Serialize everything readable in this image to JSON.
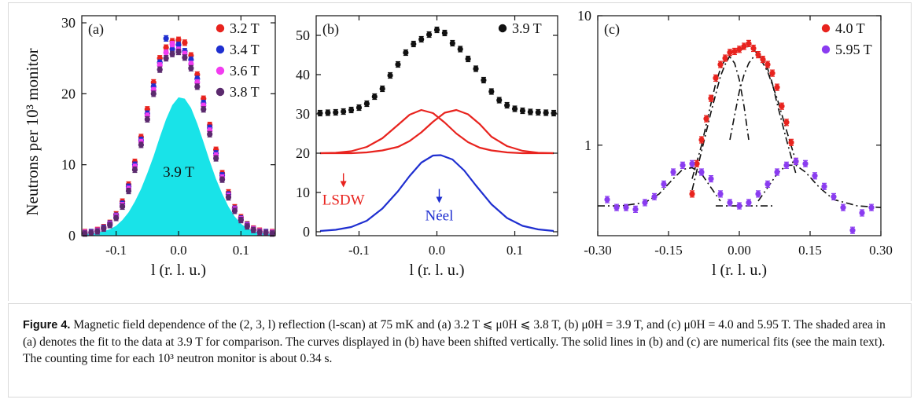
{
  "caption": {
    "label": "Figure 4.",
    "text": "Magnetic field dependence of the (2, 3, l) reflection (l-scan) at 75 mK and (a) 3.2 T ⩽ μ0H ⩽ 3.8 T, (b) μ0H = 3.9 T, and (c) μ0H = 4.0 and 5.95 T. The shaded area in (a) denotes the fit to the data at 3.9 T for comparison. The curves displayed in (b) have been shifted vertically. The solid lines in (b) and (c) are numerical fits (see the main text). The counting time for each 10³ neutron monitor is about 0.34 s."
  },
  "colors": {
    "red": "#e8231e",
    "blue": "#1f2fd0",
    "magenta": "#f23cf0",
    "purple": "#5b2a6e",
    "violet": "#8a3cf0",
    "cyan": "#19e3e8",
    "black": "#111111",
    "fit_red": "#e8231e",
    "fit_blue": "#1f2fd0"
  },
  "chart_data": [
    {
      "type": "scatter",
      "panel_label": "(a)",
      "ylabel": "Neutrons per 10³ monitor",
      "xlabel": "l (r. l. u.)",
      "xlim": [
        -0.155,
        0.155
      ],
      "ylim": [
        0,
        31
      ],
      "xticks": [
        -0.1,
        0.0,
        0.1
      ],
      "xtick_labels": [
        "-0.1",
        "0.0",
        "0.1"
      ],
      "yticks": [
        0,
        10,
        20,
        30
      ],
      "ytick_labels": [
        "0",
        "10",
        "20",
        "30"
      ],
      "legend": {
        "position": "top-right",
        "entries": [
          "3.2 T",
          "3.4 T",
          "3.6 T",
          "3.8 T"
        ]
      },
      "shaded_fit": {
        "label": "3.9 T",
        "color": "cyan",
        "x": [
          -0.15,
          -0.13,
          -0.11,
          -0.1,
          -0.09,
          -0.08,
          -0.07,
          -0.06,
          -0.05,
          -0.04,
          -0.03,
          -0.02,
          -0.01,
          0.0,
          0.01,
          0.02,
          0.03,
          0.04,
          0.05,
          0.06,
          0.07,
          0.08,
          0.09,
          0.1,
          0.11,
          0.13,
          0.15
        ],
        "y": [
          0.2,
          0.4,
          0.9,
          1.4,
          2.2,
          3.3,
          4.8,
          6.6,
          8.8,
          11.2,
          13.9,
          16.4,
          18.4,
          19.5,
          19.3,
          18.0,
          15.8,
          13.2,
          10.5,
          8.0,
          5.9,
          4.1,
          2.7,
          1.7,
          1.0,
          0.4,
          0.2
        ]
      },
      "series": [
        {
          "name": "3.2 T",
          "color": "red",
          "x": [
            -0.15,
            -0.14,
            -0.13,
            -0.12,
            -0.11,
            -0.1,
            -0.09,
            -0.08,
            -0.07,
            -0.06,
            -0.05,
            -0.04,
            -0.03,
            -0.02,
            -0.01,
            0.0,
            0.01,
            0.02,
            0.03,
            0.04,
            0.05,
            0.06,
            0.07,
            0.08,
            0.09,
            0.1,
            0.11,
            0.12,
            0.13,
            0.14,
            0.15
          ],
          "y": [
            0.5,
            0.5,
            0.8,
            1.2,
            1.8,
            3.0,
            4.8,
            7.2,
            10.4,
            13.9,
            17.8,
            21.6,
            25.0,
            26.5,
            27.4,
            27.6,
            27.2,
            25.4,
            22.7,
            19.3,
            15.6,
            12.1,
            8.8,
            6.1,
            4.0,
            2.6,
            1.6,
            1.0,
            0.7,
            0.5,
            0.5
          ]
        },
        {
          "name": "3.4 T",
          "color": "blue",
          "x": [
            -0.15,
            -0.14,
            -0.13,
            -0.12,
            -0.11,
            -0.1,
            -0.09,
            -0.08,
            -0.07,
            -0.06,
            -0.05,
            -0.04,
            -0.03,
            -0.02,
            -0.01,
            0.0,
            0.01,
            0.02,
            0.03,
            0.04,
            0.05,
            0.06,
            0.07,
            0.08,
            0.09,
            0.1,
            0.11,
            0.12,
            0.13,
            0.14,
            0.15
          ],
          "y": [
            0.4,
            0.5,
            0.7,
            1.1,
            1.7,
            2.8,
            4.5,
            6.9,
            10.0,
            13.5,
            17.2,
            21.0,
            24.4,
            27.8,
            26.3,
            26.9,
            26.0,
            24.8,
            22.1,
            18.7,
            15.2,
            11.6,
            8.5,
            5.8,
            3.8,
            2.4,
            1.5,
            0.9,
            0.6,
            0.5,
            0.4
          ]
        },
        {
          "name": "3.6 T",
          "color": "magenta",
          "x": [
            -0.15,
            -0.14,
            -0.13,
            -0.12,
            -0.11,
            -0.1,
            -0.09,
            -0.08,
            -0.07,
            -0.06,
            -0.05,
            -0.04,
            -0.03,
            -0.02,
            -0.01,
            0.0,
            0.01,
            0.02,
            0.03,
            0.04,
            0.05,
            0.06,
            0.07,
            0.08,
            0.09,
            0.1,
            0.11,
            0.12,
            0.13,
            0.14,
            0.15
          ],
          "y": [
            0.4,
            0.4,
            0.7,
            1.0,
            1.6,
            2.7,
            4.3,
            6.6,
            9.7,
            13.2,
            16.9,
            20.5,
            24.0,
            25.8,
            27.0,
            26.2,
            25.6,
            24.2,
            21.6,
            18.3,
            14.8,
            11.3,
            8.2,
            5.6,
            3.7,
            2.3,
            1.4,
            0.9,
            0.6,
            0.4,
            0.4
          ]
        },
        {
          "name": "3.8 T",
          "color": "purple",
          "x": [
            -0.15,
            -0.14,
            -0.13,
            -0.12,
            -0.11,
            -0.1,
            -0.09,
            -0.08,
            -0.07,
            -0.06,
            -0.05,
            -0.04,
            -0.03,
            -0.02,
            -0.01,
            0.0,
            0.01,
            0.02,
            0.03,
            0.04,
            0.05,
            0.06,
            0.07,
            0.08,
            0.09,
            0.1,
            0.11,
            0.12,
            0.13,
            0.14,
            0.15
          ],
          "y": [
            0.3,
            0.4,
            0.6,
            1.0,
            1.5,
            2.5,
            4.1,
            6.3,
            9.3,
            12.8,
            16.4,
            20.0,
            23.4,
            25.0,
            25.6,
            25.9,
            25.1,
            23.6,
            21.0,
            17.8,
            14.3,
            10.9,
            7.9,
            5.4,
            3.5,
            2.2,
            1.3,
            0.8,
            0.5,
            0.4,
            0.3
          ]
        }
      ]
    },
    {
      "type": "scatter",
      "panel_label": "(b)",
      "xlabel": "l (r. l. u.)",
      "xlim": [
        -0.155,
        0.155
      ],
      "ylim": [
        -1,
        55
      ],
      "xticks": [
        -0.1,
        0.0,
        0.1
      ],
      "xtick_labels": [
        "-0.1",
        "0.0",
        "0.1"
      ],
      "yticks": [
        0,
        10,
        20,
        30,
        40,
        50
      ],
      "ytick_labels": [
        "0",
        "10",
        "20",
        "30",
        "40",
        "50"
      ],
      "legend": {
        "position": "top-right",
        "entries": [
          "3.9 T"
        ]
      },
      "series": [
        {
          "name": "3.9 T",
          "color": "black",
          "x": [
            -0.15,
            -0.14,
            -0.13,
            -0.12,
            -0.11,
            -0.1,
            -0.09,
            -0.08,
            -0.07,
            -0.06,
            -0.05,
            -0.04,
            -0.03,
            -0.02,
            -0.01,
            0.0,
            0.01,
            0.02,
            0.03,
            0.04,
            0.05,
            0.06,
            0.07,
            0.08,
            0.09,
            0.1,
            0.11,
            0.12,
            0.13,
            0.14,
            0.15
          ],
          "y": [
            30.2,
            30.3,
            30.4,
            30.6,
            31.0,
            31.6,
            32.6,
            34.4,
            36.4,
            39.8,
            42.6,
            45.6,
            47.8,
            49.0,
            50.2,
            51.4,
            50.6,
            48.0,
            46.5,
            44.0,
            41.5,
            38.6,
            35.7,
            33.5,
            32.2,
            31.3,
            30.8,
            30.5,
            30.4,
            30.3,
            30.2
          ]
        }
      ],
      "fit_lines": [
        {
          "color": "fit_red",
          "x": [
            -0.15,
            -0.13,
            -0.11,
            -0.09,
            -0.07,
            -0.05,
            -0.035,
            -0.02,
            -0.005,
            0.01,
            0.025,
            0.04,
            0.055,
            0.07,
            0.09,
            0.11,
            0.13,
            0.15
          ],
          "y": [
            20.0,
            20.1,
            20.5,
            21.6,
            23.8,
            27.2,
            29.8,
            31.0,
            30.2,
            27.8,
            25.0,
            22.8,
            21.4,
            20.7,
            20.2,
            20.0,
            20.0,
            20.0
          ]
        },
        {
          "color": "fit_red",
          "x": [
            -0.15,
            -0.13,
            -0.11,
            -0.09,
            -0.07,
            -0.05,
            -0.035,
            -0.02,
            -0.005,
            0.01,
            0.025,
            0.04,
            0.055,
            0.07,
            0.09,
            0.11,
            0.13,
            0.15
          ],
          "y": [
            20.0,
            20.0,
            20.0,
            20.2,
            20.7,
            21.6,
            23.1,
            25.3,
            28.0,
            30.3,
            31.0,
            29.9,
            27.4,
            24.2,
            21.8,
            20.6,
            20.1,
            20.0
          ]
        },
        {
          "color": "fit_blue",
          "x": [
            -0.15,
            -0.13,
            -0.11,
            -0.09,
            -0.07,
            -0.05,
            -0.035,
            -0.02,
            -0.005,
            0.005,
            0.02,
            0.035,
            0.05,
            0.07,
            0.09,
            0.11,
            0.13,
            0.15
          ],
          "y": [
            0.2,
            0.5,
            1.2,
            2.8,
            5.9,
            10.3,
            14.2,
            17.6,
            19.4,
            19.5,
            18.4,
            15.6,
            11.8,
            7.0,
            3.5,
            1.5,
            0.6,
            0.2
          ]
        }
      ],
      "annotations": [
        {
          "text": "LSDW",
          "color": "fit_red",
          "x": -0.12,
          "y": 10.5
        },
        {
          "text": "Néel",
          "color": "fit_blue",
          "x": 0.003,
          "y": 6.5
        }
      ]
    },
    {
      "type": "scatter",
      "panel_label": "(c)",
      "xlabel": "l (r. l. u.)",
      "yscale": "log",
      "xlim": [
        -0.3,
        0.3
      ],
      "ylim": [
        0.2,
        10
      ],
      "xticks": [
        -0.3,
        -0.15,
        0.0,
        0.15,
        0.3
      ],
      "xtick_labels": [
        "-0.30",
        "-0.15",
        "0.00",
        "0.15",
        "0.30"
      ],
      "yticks": [
        1,
        10
      ],
      "ytick_labels": [
        "1",
        "10"
      ],
      "legend": {
        "position": "top-right",
        "entries": [
          "4.0 T",
          "5.95 T"
        ]
      },
      "series": [
        {
          "name": "4.0 T",
          "color": "red",
          "x": [
            -0.1,
            -0.09,
            -0.08,
            -0.07,
            -0.06,
            -0.05,
            -0.04,
            -0.03,
            -0.02,
            -0.01,
            0.0,
            0.01,
            0.02,
            0.03,
            0.04,
            0.05,
            0.06,
            0.07,
            0.08,
            0.09,
            0.1,
            0.11,
            0.12
          ],
          "y": [
            0.42,
            0.72,
            1.1,
            1.6,
            2.3,
            3.3,
            4.2,
            4.7,
            5.2,
            5.3,
            5.5,
            5.8,
            6.1,
            5.6,
            5.0,
            4.6,
            4.2,
            3.6,
            2.8,
            2.0,
            1.5,
            1.05,
            0.75
          ]
        },
        {
          "name": "5.95 T",
          "color": "violet",
          "x": [
            -0.28,
            -0.26,
            -0.24,
            -0.22,
            -0.2,
            -0.18,
            -0.16,
            -0.14,
            -0.12,
            -0.1,
            -0.08,
            -0.06,
            -0.04,
            -0.02,
            0.0,
            0.02,
            0.04,
            0.06,
            0.08,
            0.1,
            0.12,
            0.14,
            0.16,
            0.18,
            0.2,
            0.22,
            0.24,
            0.26,
            0.28
          ],
          "y": [
            0.38,
            0.33,
            0.33,
            0.32,
            0.36,
            0.4,
            0.5,
            0.62,
            0.7,
            0.72,
            0.62,
            0.55,
            0.42,
            0.36,
            0.34,
            0.36,
            0.42,
            0.5,
            0.62,
            0.7,
            0.75,
            0.72,
            0.58,
            0.48,
            0.4,
            0.33,
            0.22,
            0.3,
            0.33
          ]
        }
      ],
      "fit_lines": [
        {
          "color": "black",
          "style": "dashdot",
          "x": [
            -0.1,
            -0.08,
            -0.06,
            -0.04,
            -0.03,
            -0.02,
            -0.01,
            0.0,
            0.01,
            0.02,
            0.03,
            0.04,
            0.06,
            0.08,
            0.1,
            0.12
          ],
          "y": [
            0.45,
            0.9,
            1.8,
            3.4,
            4.2,
            4.9,
            5.2,
            5.4,
            5.6,
            5.8,
            5.5,
            5.0,
            3.7,
            2.3,
            1.3,
            0.75
          ]
        },
        {
          "color": "black",
          "style": "dashdot",
          "x": [
            -0.1,
            -0.08,
            -0.06,
            -0.05,
            -0.04,
            -0.03,
            -0.02,
            -0.01,
            0.0,
            0.01,
            0.02
          ],
          "y": [
            0.55,
            1.0,
            2.1,
            3.0,
            3.9,
            4.6,
            4.8,
            4.3,
            3.2,
            2.0,
            1.1
          ]
        },
        {
          "color": "black",
          "style": "dashdot",
          "x": [
            -0.02,
            -0.01,
            0.0,
            0.01,
            0.02,
            0.03,
            0.04,
            0.05,
            0.06,
            0.07,
            0.08,
            0.1,
            0.12
          ],
          "y": [
            1.1,
            1.7,
            2.6,
            3.5,
            4.3,
            4.8,
            4.9,
            4.6,
            3.9,
            3.0,
            2.1,
            1.1,
            0.6
          ]
        },
        {
          "color": "black",
          "style": "dashdot",
          "x": [
            -0.3,
            -0.25,
            -0.2,
            -0.17,
            -0.14,
            -0.12,
            -0.1,
            -0.08,
            -0.06,
            -0.04
          ],
          "y": [
            0.34,
            0.34,
            0.36,
            0.42,
            0.55,
            0.65,
            0.67,
            0.6,
            0.47,
            0.37
          ]
        },
        {
          "color": "black",
          "style": "dashdot",
          "x": [
            0.04,
            0.06,
            0.08,
            0.1,
            0.12,
            0.14,
            0.17,
            0.2,
            0.25,
            0.3
          ],
          "y": [
            0.37,
            0.47,
            0.6,
            0.7,
            0.7,
            0.62,
            0.47,
            0.38,
            0.34,
            0.33
          ]
        },
        {
          "color": "black",
          "style": "dashdot",
          "x": [
            -0.05,
            0.07
          ],
          "y": [
            0.34,
            0.34
          ]
        }
      ]
    }
  ]
}
